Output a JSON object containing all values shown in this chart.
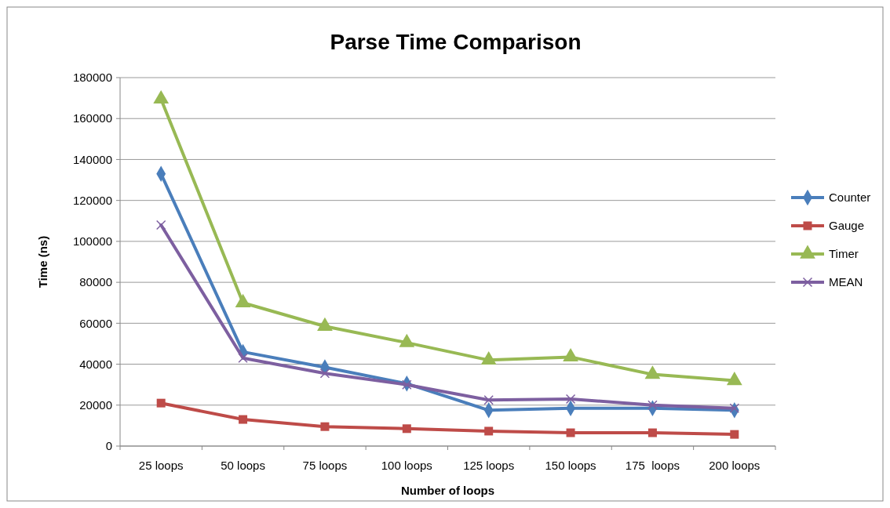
{
  "chart_data": {
    "type": "line",
    "title": "Parse Time Comparison",
    "xlabel": "Number of loops",
    "ylabel": "Time (ns)",
    "categories": [
      "25 loops",
      "50 loops",
      "75 loops",
      "100 loops",
      "125 loops",
      "150 loops",
      "175  loops",
      "200 loops"
    ],
    "series": [
      {
        "name": "Counter",
        "color": "#4a7ebb",
        "marker": "diamond",
        "values": [
          133000,
          46000,
          38500,
          30500,
          17500,
          18500,
          18500,
          17500
        ]
      },
      {
        "name": "Gauge",
        "color": "#be4b48",
        "marker": "square",
        "values": [
          21000,
          13000,
          9500,
          8500,
          7300,
          6500,
          6500,
          5700
        ]
      },
      {
        "name": "Timer",
        "color": "#98b954",
        "marker": "triangle",
        "values": [
          169500,
          70000,
          58500,
          50500,
          42000,
          43500,
          35000,
          32000
        ]
      },
      {
        "name": "MEAN",
        "color": "#7d5fa0",
        "marker": "cross",
        "values": [
          108000,
          43000,
          35500,
          30000,
          22500,
          23000,
          20000,
          18500
        ]
      }
    ],
    "ylim": [
      0,
      180000
    ],
    "yticks": [
      0,
      20000,
      40000,
      60000,
      80000,
      100000,
      120000,
      140000,
      160000,
      180000
    ],
    "grid": "y",
    "legend": "right",
    "line_style": "solid"
  }
}
